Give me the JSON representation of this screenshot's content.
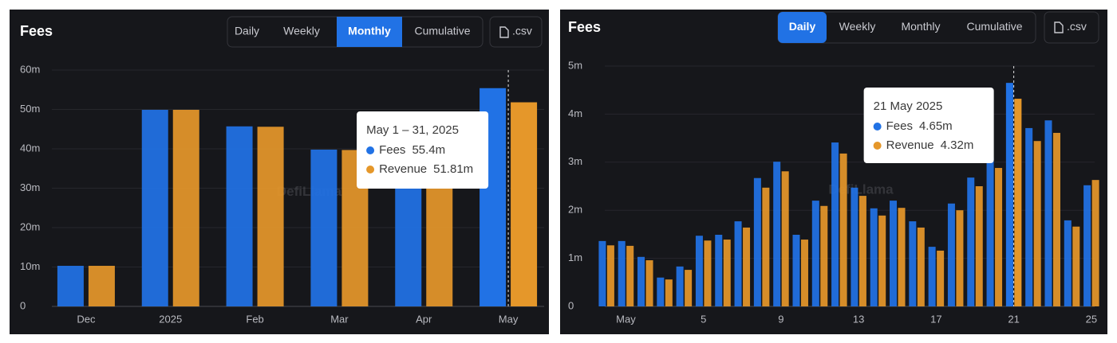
{
  "chart_data": [
    {
      "type": "bar",
      "title": "Fees",
      "tabs": [
        "Daily",
        "Weekly",
        "Monthly",
        "Cumulative"
      ],
      "active_tab": "Monthly",
      "export_label": ".csv",
      "watermark": "DefiLlama",
      "categories": [
        "Dec",
        "2025",
        "Feb",
        "Mar",
        "Apr",
        "May"
      ],
      "series": [
        {
          "name": "Fees",
          "color": "#2172e5",
          "values": [
            10.3,
            49.9,
            45.7,
            39.8,
            33,
            55.4
          ]
        },
        {
          "name": "Revenue",
          "color": "#e5972a",
          "values": [
            10.3,
            49.9,
            45.6,
            39.7,
            33,
            51.81
          ]
        }
      ],
      "ylim": [
        0,
        60
      ],
      "yticks": [
        0,
        {
          "value": 10,
          "label": "10m"
        },
        {
          "value": 20,
          "label": "20m"
        },
        {
          "value": 30,
          "label": "30m"
        },
        {
          "value": 40,
          "label": "40m"
        },
        {
          "value": 50,
          "label": "50m"
        },
        {
          "value": 60,
          "label": "60m"
        }
      ],
      "grid": true,
      "highlight_index": 5,
      "tooltip": {
        "title": "May 1 – 31, 2025",
        "labels": [
          "55.4m",
          "51.81m"
        ]
      }
    },
    {
      "type": "bar",
      "title": "Fees",
      "tabs": [
        "Daily",
        "Weekly",
        "Monthly",
        "Cumulative"
      ],
      "active_tab": "Daily",
      "export_label": ".csv",
      "watermark": "DefiLlama",
      "categories": [
        null,
        "May",
        null,
        null,
        null,
        "5",
        null,
        null,
        null,
        "9",
        null,
        null,
        null,
        "13",
        null,
        null,
        null,
        "17",
        null,
        null,
        null,
        "21",
        null,
        null,
        null,
        "25"
      ],
      "series": [
        {
          "name": "Fees",
          "color": "#2172e5",
          "values": [
            1.36,
            1.36,
            1.03,
            0.6,
            0.83,
            1.47,
            1.49,
            1.77,
            2.67,
            3.01,
            1.49,
            2.2,
            3.41,
            2.47,
            2.04,
            2.2,
            1.77,
            1.24,
            2.14,
            2.68,
            3.1,
            4.65,
            3.71,
            3.87,
            1.79,
            2.52
          ]
        },
        {
          "name": "Revenue",
          "color": "#e5972a",
          "values": [
            1.27,
            1.26,
            0.96,
            0.56,
            0.76,
            1.37,
            1.39,
            1.64,
            2.47,
            2.81,
            1.39,
            2.09,
            3.18,
            2.3,
            1.89,
            2.05,
            1.64,
            1.16,
            2.0,
            2.5,
            2.88,
            4.32,
            3.44,
            3.61,
            1.66,
            2.63
          ]
        }
      ],
      "ylim": [
        0,
        5
      ],
      "yticks": [
        0,
        {
          "value": 1,
          "label": "1m"
        },
        {
          "value": 2,
          "label": "2m"
        },
        {
          "value": 3,
          "label": "3m"
        },
        {
          "value": 4,
          "label": "4m"
        },
        {
          "value": 5,
          "label": "5m"
        }
      ],
      "grid": true,
      "highlight_index": 21,
      "tooltip": {
        "title": "21 May 2025",
        "labels": [
          "4.65m",
          "4.32m"
        ]
      }
    }
  ]
}
